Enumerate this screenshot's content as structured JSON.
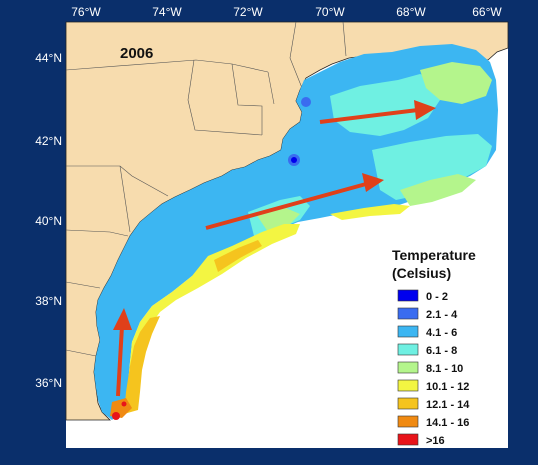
{
  "map": {
    "year": "2006",
    "lon_labels": [
      "76°W",
      "74°W",
      "72°W",
      "70°W",
      "68°W",
      "66°W"
    ],
    "lat_labels": [
      "44°N",
      "42°N",
      "40°N",
      "38°N",
      "36°N"
    ],
    "arrows_direction_note": "",
    "legend": {
      "title_line1": "Temperature",
      "title_line2": "(Celsius)",
      "items": [
        {
          "label": "0 - 2",
          "color": "#0000ee"
        },
        {
          "label": "2.1 - 4",
          "color": "#3a6cf0"
        },
        {
          "label": "4.1 - 6",
          "color": "#3cb6f2"
        },
        {
          "label": "6.1 - 8",
          "color": "#6ff0e2"
        },
        {
          "label": "8.1 - 10",
          "color": "#b4f58c"
        },
        {
          "label": "10.1 - 12",
          "color": "#f3f542"
        },
        {
          "label": "12.1 - 14",
          "color": "#f5c41e"
        },
        {
          "label": "14.1 - 16",
          "color": "#f08a12"
        },
        {
          "label": ">16",
          "color": "#e8141a"
        }
      ]
    },
    "colors": {
      "background": "#0a2f6b",
      "land": "#f7dcae",
      "ocean_blank": "#ffffff",
      "arrow": "#e0401a"
    }
  }
}
